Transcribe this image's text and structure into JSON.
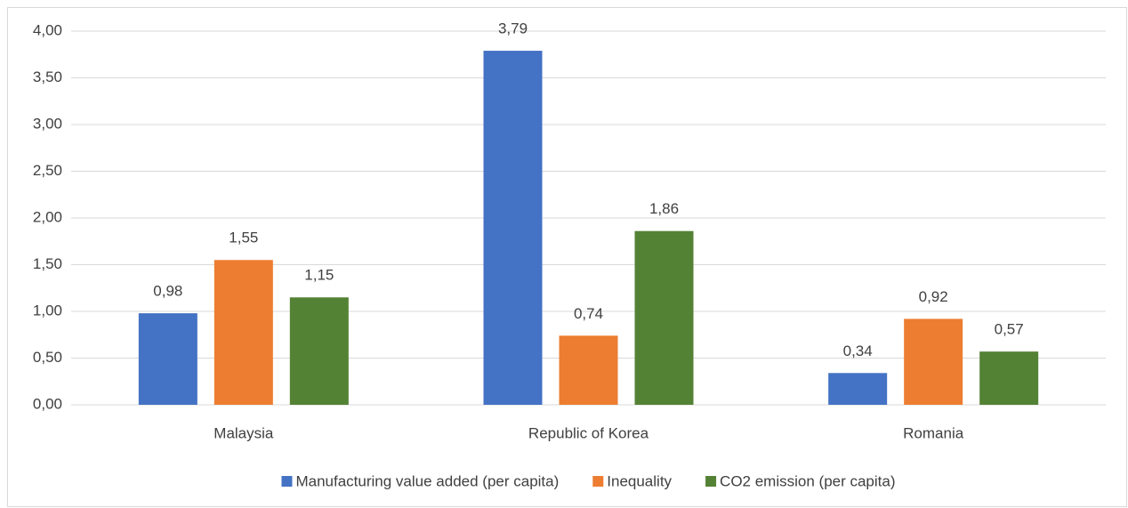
{
  "chart_data": {
    "type": "bar",
    "categories": [
      "Malaysia",
      "Republic of Korea",
      "Romania"
    ],
    "series": [
      {
        "name": "Manufacturing value added (per capita)",
        "color": "#4472c4",
        "values": [
          0.98,
          3.79,
          0.34
        ],
        "value_labels": [
          "0,98",
          "3,79",
          "0,34"
        ]
      },
      {
        "name": "Inequality",
        "color": "#ed7d31",
        "values": [
          1.55,
          0.74,
          0.92
        ],
        "value_labels": [
          "1,55",
          "0,74",
          "0,92"
        ]
      },
      {
        "name": "CO2 emission (per capita)",
        "color": "#548235",
        "values": [
          1.15,
          1.86,
          0.57
        ],
        "value_labels": [
          "1,15",
          "1,86",
          "0,57"
        ]
      }
    ],
    "ylim": [
      0,
      4
    ],
    "yticks": [
      {
        "value": 0,
        "label": "0,00"
      },
      {
        "value": 0.5,
        "label": "0,50"
      },
      {
        "value": 1,
        "label": "1,00"
      },
      {
        "value": 1.5,
        "label": "1,50"
      },
      {
        "value": 2,
        "label": "2,00"
      },
      {
        "value": 2.5,
        "label": "2,50"
      },
      {
        "value": 3,
        "label": "3,00"
      },
      {
        "value": 3.5,
        "label": "3,50"
      },
      {
        "value": 4,
        "label": "4,00"
      }
    ],
    "grid": true,
    "legend": "bottom"
  }
}
